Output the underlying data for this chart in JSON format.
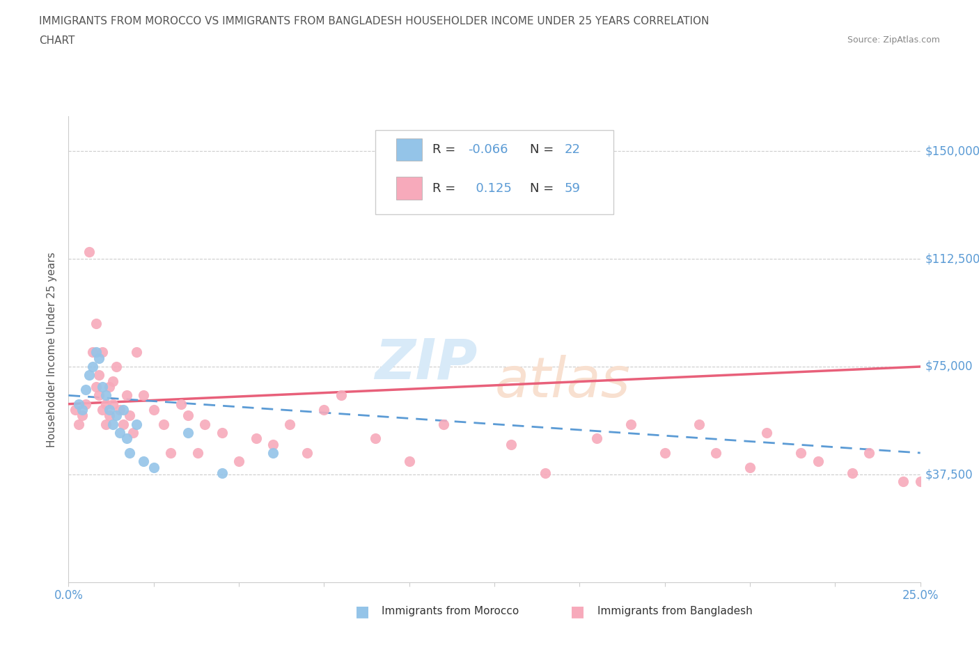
{
  "title_line1": "IMMIGRANTS FROM MOROCCO VS IMMIGRANTS FROM BANGLADESH HOUSEHOLDER INCOME UNDER 25 YEARS CORRELATION",
  "title_line2": "CHART",
  "source": "Source: ZipAtlas.com",
  "ylabel": "Householder Income Under 25 years",
  "xmin": 0.0,
  "xmax": 0.25,
  "ymin": 0,
  "ymax": 162000,
  "yticks": [
    37500,
    75000,
    112500,
    150000
  ],
  "ytick_labels": [
    "$37,500",
    "$75,000",
    "$112,500",
    "$150,000"
  ],
  "morocco_color": "#94C4E8",
  "bangladesh_color": "#F7AABB",
  "morocco_line_color": "#5B9BD5",
  "bangladesh_line_color": "#E8607A",
  "morocco_R": -0.066,
  "morocco_N": 22,
  "bangladesh_R": 0.125,
  "bangladesh_N": 59,
  "watermark_zip": "ZIP",
  "watermark_atlas": "atlas",
  "background_color": "#ffffff",
  "morocco_x": [
    0.003,
    0.004,
    0.005,
    0.006,
    0.007,
    0.008,
    0.009,
    0.01,
    0.011,
    0.012,
    0.013,
    0.014,
    0.015,
    0.016,
    0.017,
    0.018,
    0.02,
    0.022,
    0.025,
    0.035,
    0.045,
    0.06
  ],
  "morocco_y": [
    62000,
    60000,
    67000,
    72000,
    75000,
    80000,
    78000,
    68000,
    65000,
    60000,
    55000,
    58000,
    52000,
    60000,
    50000,
    45000,
    55000,
    42000,
    40000,
    52000,
    38000,
    45000
  ],
  "bangladesh_x": [
    0.002,
    0.003,
    0.004,
    0.005,
    0.006,
    0.007,
    0.008,
    0.008,
    0.009,
    0.009,
    0.01,
    0.01,
    0.011,
    0.011,
    0.012,
    0.012,
    0.013,
    0.013,
    0.014,
    0.015,
    0.016,
    0.017,
    0.018,
    0.019,
    0.02,
    0.022,
    0.025,
    0.028,
    0.03,
    0.033,
    0.035,
    0.038,
    0.04,
    0.045,
    0.05,
    0.055,
    0.06,
    0.065,
    0.07,
    0.075,
    0.08,
    0.09,
    0.1,
    0.11,
    0.13,
    0.14,
    0.155,
    0.165,
    0.175,
    0.185,
    0.19,
    0.2,
    0.205,
    0.215,
    0.22,
    0.23,
    0.235,
    0.245,
    0.25
  ],
  "bangladesh_y": [
    60000,
    55000,
    58000,
    62000,
    115000,
    80000,
    90000,
    68000,
    72000,
    65000,
    80000,
    60000,
    62000,
    55000,
    68000,
    58000,
    70000,
    62000,
    75000,
    60000,
    55000,
    65000,
    58000,
    52000,
    80000,
    65000,
    60000,
    55000,
    45000,
    62000,
    58000,
    45000,
    55000,
    52000,
    42000,
    50000,
    48000,
    55000,
    45000,
    60000,
    65000,
    50000,
    42000,
    55000,
    48000,
    38000,
    50000,
    55000,
    45000,
    55000,
    45000,
    40000,
    52000,
    45000,
    42000,
    38000,
    45000,
    35000,
    35000
  ]
}
